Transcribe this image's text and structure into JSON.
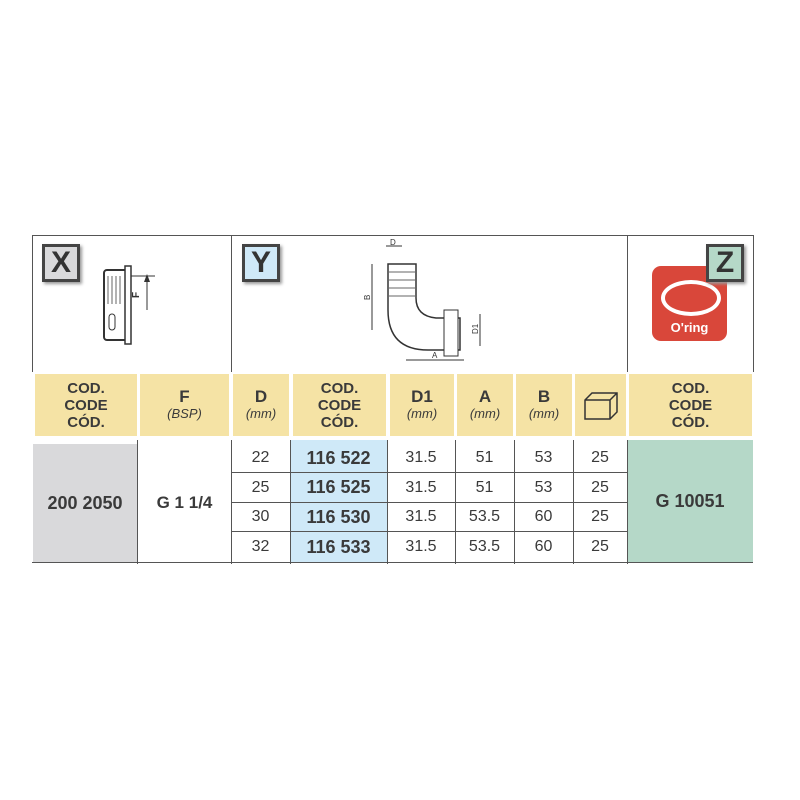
{
  "sections": {
    "x_label": "X",
    "y_label": "Y",
    "z_label": "Z",
    "oring_label": "O'ring",
    "drawing_labels": {
      "F": "F",
      "D": "D",
      "B": "B",
      "D1": "D1",
      "A": "A"
    }
  },
  "colors": {
    "header_bg": "#f5e3a5",
    "x_code_bg": "#d9d9db",
    "y_code_bg": "#cfe9f8",
    "z_code_bg": "#b5d8c8",
    "oring_red": "#d9473a"
  },
  "headers": {
    "x_code": [
      "COD.",
      "CODE",
      "CÓD."
    ],
    "f": {
      "title": "F",
      "unit": "(BSP)"
    },
    "d": {
      "title": "D",
      "unit": "(mm)"
    },
    "y_code": [
      "COD.",
      "CODE",
      "CÓD."
    ],
    "d1": {
      "title": "D1",
      "unit": "(mm)"
    },
    "a": {
      "title": "A",
      "unit": "(mm)"
    },
    "b": {
      "title": "B",
      "unit": "(mm)"
    },
    "box_icon": "box-icon",
    "z_code": [
      "COD.",
      "CODE",
      "CÓD."
    ]
  },
  "x_code": "200 2050",
  "f_value": "G 1 1/4",
  "z_code": "G 10051",
  "rows": [
    {
      "d": "22",
      "code": "116 522",
      "d1": "31.5",
      "a": "51",
      "b": "53",
      "qty": "25"
    },
    {
      "d": "25",
      "code": "116 525",
      "d1": "31.5",
      "a": "51",
      "b": "53",
      "qty": "25"
    },
    {
      "d": "30",
      "code": "116 530",
      "d1": "31.5",
      "a": "53.5",
      "b": "60",
      "qty": "25"
    },
    {
      "d": "32",
      "code": "116 533",
      "d1": "31.5",
      "a": "53.5",
      "b": "60",
      "qty": "25"
    }
  ]
}
